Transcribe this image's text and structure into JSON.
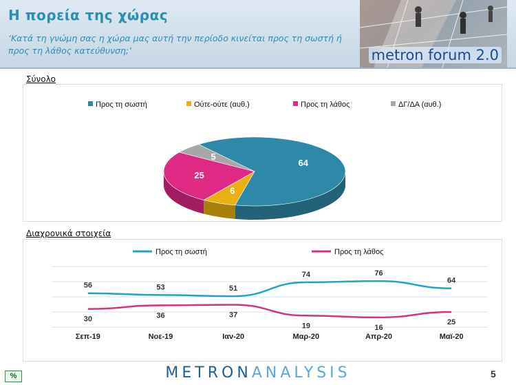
{
  "header": {
    "title": "Η πορεία της χώρας",
    "subtitle": "‘Κατά τη γνώμη σας η χώρα μας αυτή την περίοδο κινείται προς τη σωστή ή προς τη λάθος κατεύθυνση;’",
    "logo_text": "metron forum 2.0"
  },
  "footer": {
    "brand_dark": "METRON",
    "brand_light": "ANALYSIS",
    "percent_label": "%",
    "page_number": "5"
  },
  "colors": {
    "teal": "#2e88a8",
    "gold": "#e8b010",
    "magenta": "#de2a85",
    "gray": "#a7a7a7",
    "line_sosti": "#1fa3c9",
    "line_lathos": "#d6307f"
  },
  "chart_data": [
    {
      "type": "pie",
      "panel_label": "Σύνολο",
      "legend": [
        "Προς τη σωστή",
        "Ούτε-ούτε (αυθ.)",
        "Προς τη λάθος",
        "ΔΓ/ΔΑ (αυθ.)"
      ],
      "slices": [
        {
          "label": "Προς τη σωστή",
          "value": 64,
          "display": "64"
        },
        {
          "label": "Ούτε-ούτε (αυθ.)",
          "value": 6,
          "display": "6"
        },
        {
          "label": "Προς τη λάθος",
          "value": 25,
          "display": "25"
        },
        {
          "label": "ΔΓ/ΔΑ (αυθ.)",
          "value": 5,
          "display": "5"
        }
      ]
    },
    {
      "type": "line",
      "panel_label": "Διαχρονικά στοιχεία",
      "categories": [
        "Σεπ-19",
        "Νοε-19",
        "Ιαν-20",
        "Μαρ-20",
        "Απρ-20",
        "Μαϊ-20"
      ],
      "series": [
        {
          "name": "Προς τη σωστή",
          "values": [
            56,
            53,
            51,
            74,
            76,
            64
          ]
        },
        {
          "name": "Προς τη λάθος",
          "values": [
            30,
            36,
            37,
            19,
            16,
            25
          ]
        }
      ],
      "ylim": [
        0,
        100
      ],
      "grid": true
    }
  ]
}
